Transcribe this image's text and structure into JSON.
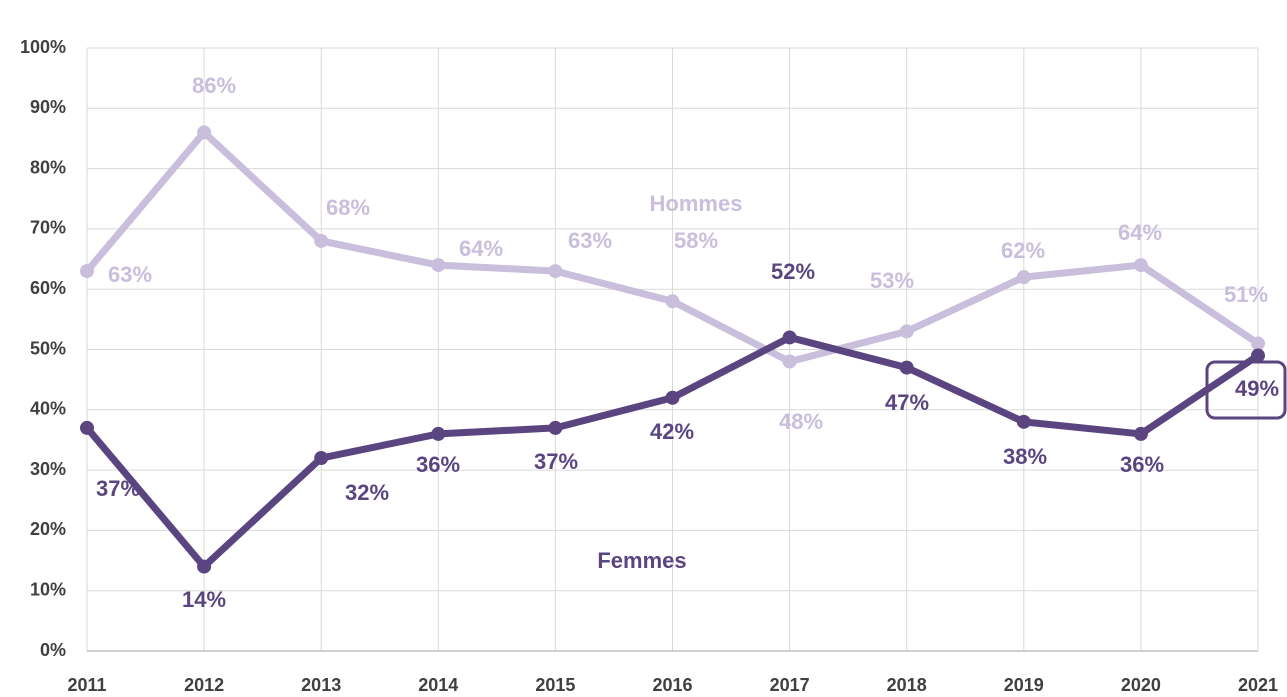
{
  "chart_data": {
    "type": "line",
    "categories": [
      "2011",
      "2012",
      "2013",
      "2014",
      "2015",
      "2016",
      "2017",
      "2018",
      "2019",
      "2020",
      "2021"
    ],
    "series": [
      {
        "name": "Hommes",
        "color": "#c9bedc",
        "values": [
          63,
          86,
          68,
          64,
          63,
          58,
          48,
          53,
          62,
          64,
          51
        ],
        "value_labels": [
          "63%",
          "86%",
          "68%",
          "64%",
          "63%",
          "58%",
          "48%",
          "53%",
          "62%",
          "64%",
          "51%"
        ]
      },
      {
        "name": "Femmes",
        "color": "#5b4580",
        "values": [
          37,
          14,
          32,
          36,
          37,
          42,
          52,
          47,
          38,
          36,
          49
        ],
        "value_labels": [
          "37%",
          "14%",
          "32%",
          "36%",
          "37%",
          "42%",
          "52%",
          "47%",
          "38%",
          "36%",
          "49%"
        ]
      }
    ],
    "ylim": [
      0,
      100
    ],
    "yticks": [
      {
        "value": 0,
        "label": "0%"
      },
      {
        "value": 10,
        "label": "10%"
      },
      {
        "value": 20,
        "label": "20%"
      },
      {
        "value": 30,
        "label": "30%"
      },
      {
        "value": 40,
        "label": "40%"
      },
      {
        "value": 50,
        "label": "50%"
      },
      {
        "value": 60,
        "label": "60%"
      },
      {
        "value": 70,
        "label": "70%"
      },
      {
        "value": 80,
        "label": "80%"
      },
      {
        "value": 90,
        "label": "90%"
      },
      {
        "value": 100,
        "label": "100%"
      }
    ],
    "grid": true
  }
}
